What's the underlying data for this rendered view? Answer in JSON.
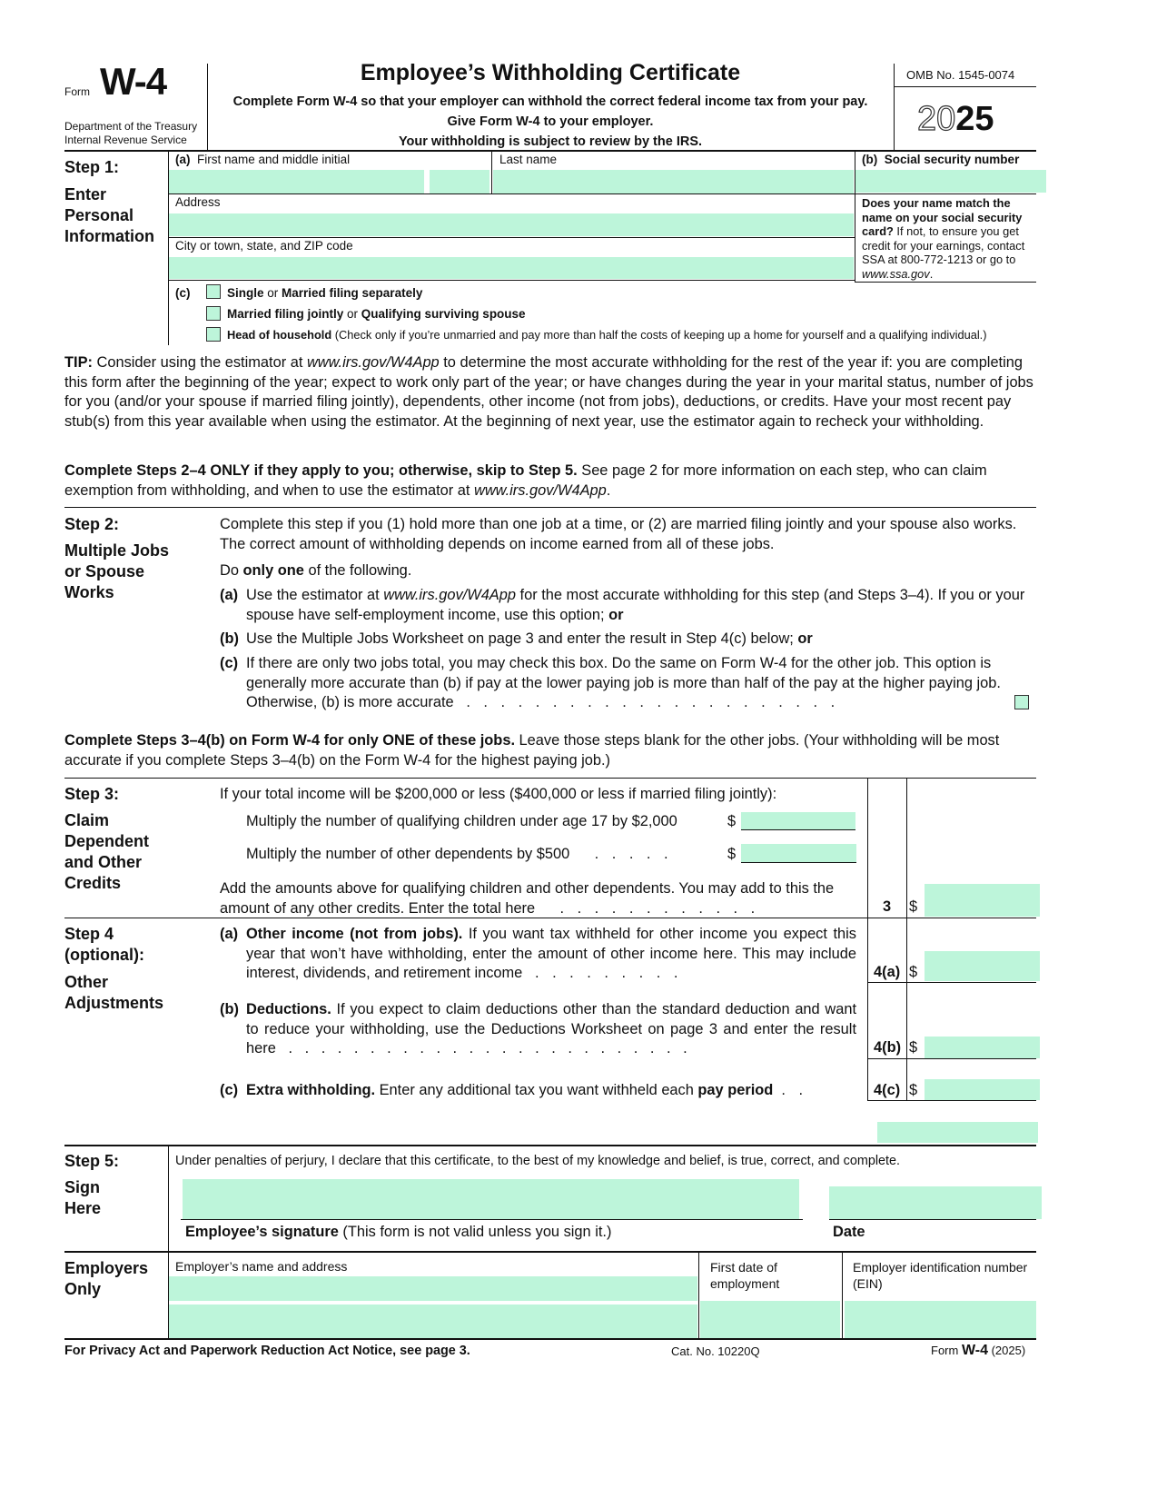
{
  "header": {
    "form_word": "Form",
    "form_name": "W-4",
    "dept1": "Department of the Treasury",
    "dept2": "Internal Revenue Service",
    "title": "Employee’s Withholding Certificate",
    "sub1": "Complete Form W-4 so that your employer can withhold the correct federal income tax from your pay.",
    "sub2": "Give Form W-4 to your employer.",
    "sub3": "Your withholding is subject to review by the IRS.",
    "omb": "OMB No. 1545-0074",
    "year_outline": "20",
    "year_bold": "25"
  },
  "step1": {
    "label": "Step 1:",
    "title1": "Enter",
    "title2": "Personal",
    "title3": "Information",
    "a": "(a)",
    "first_name": "First name and middle initial",
    "last_name": "Last name",
    "b": "(b)",
    "ssn": "Social security number",
    "address": "Address",
    "city": "City or town, state, and ZIP code",
    "note_bold": "Does your name match the name on your social security card?",
    "note": " If not, to ensure you get credit for your earnings, contact SSA at 800-772-1213 or go to ",
    "note_link": "www.ssa.gov",
    "note_end": ".",
    "c": "(c)",
    "opt1_b1": "Single",
    "opt1_or": " or ",
    "opt1_b2": "Married filing separately",
    "opt2_b1": "Married filing jointly",
    "opt2_or": " or ",
    "opt2_b2": "Qualifying surviving spouse",
    "opt3_b": "Head of household",
    "opt3": " (Check only if you’re unmarried and pay more than half the costs of keeping up a home for yourself and a qualifying individual.)"
  },
  "tip": {
    "label": "TIP:",
    "t1": " Consider using the estimator at ",
    "link": "www.irs.gov/W4App",
    "t2": " to determine the most accurate withholding for the rest of the year if: you are completing this form after the beginning of the year; expect to work only part of the year; or have changes during the year in your marital status, number of jobs for you (and/or your spouse if married filing jointly), dependents, other income (not from jobs), deductions, or credits. Have your most recent pay stub(s) from this year available when using the estimator. At the beginning of next year, use the estimator again to recheck your withholding."
  },
  "complete24": {
    "bold": "Complete Steps 2–4 ONLY if they apply to you; otherwise, skip to Step 5.",
    "t": " See page 2 for more information on each step, who can claim exemption from withholding, and when to use the estimator at ",
    "link": "www.irs.gov/W4App",
    "end": "."
  },
  "step2": {
    "label": "Step 2:",
    "t1": "Multiple Jobs",
    "t2": "or Spouse",
    "t3": "Works",
    "intro": "Complete this step if you (1) hold more than one job at a time, or (2) are married filing jointly and your spouse also works. The correct amount of withholding depends on income earned from all of these jobs.",
    "do1": "Do ",
    "do_b": "only one",
    "do2": " of the following.",
    "a": "(a)",
    "a1": "Use the estimator at ",
    "a_link": "www.irs.gov/W4App",
    "a2": " for the most accurate withholding for this step (and Steps 3–4). If you or your spouse have self-employment income, use this option; ",
    "a_or": "or",
    "b": "(b)",
    "b1": "Use the Multiple Jobs Worksheet on page 3 and enter the result in Step 4(c) below; ",
    "b_or": "or",
    "c": "(c)",
    "c1": "If there are only two jobs total, you may check this box. Do the same on Form W-4 for the other job. This option is generally more accurate than (b) if pay at the lower paying job is more than half of the pay at the higher paying job. Otherwise, (b) is more accurate",
    "dots": ". . . . . . . . . . . . . . . . . . . . . ."
  },
  "complete34": {
    "bold": "Complete Steps 3–4(b) on Form W-4 for only ONE of these jobs.",
    "t": " Leave those steps blank for the other jobs. (Your withholding will be most accurate if you complete Steps 3–4(b) on the Form W-4 for the highest paying job.)"
  },
  "step3": {
    "label": "Step 3:",
    "t1": "Claim",
    "t2": "Dependent",
    "t3": "and Other",
    "t4": "Credits",
    "intro": "If your total income will be $200,000 or less ($400,000 or less if married filing jointly):",
    "children": "Multiply the number of qualifying children under age 17 by $2,000",
    "other": "Multiply the number of other dependents by $500",
    "other_dots": ". . . . .",
    "dollar": "$",
    "add": "Add the amounts above for qualifying children and other dependents. You may add to this the amount of any other credits. Enter the total here",
    "add_dots": ". . . . . . . . . . . .",
    "line": "3"
  },
  "step4": {
    "label": "Step 4",
    "opt": "(optional):",
    "t1": "Other",
    "t2": "Adjustments",
    "a": "(a)",
    "a_b": "Other income (not from jobs).",
    "a_t": " If you want tax withheld for other income you expect this year that won’t have withholding, enter the amount of other income here. This may include interest, dividends, and retirement income",
    "a_dots": ". . . . . . . . .",
    "a_line": "4(a)",
    "b": "(b)",
    "b_b": "Deductions.",
    "b_t": " If you expect to claim deductions other than the standard deduction and want to reduce your withholding, use the Deductions Worksheet on page 3 and enter the result here",
    "b_dots": ". . . . . . . . . . . . . . . . . . . . . . . . .",
    "b_line": "4(b)",
    "c": "(c)",
    "c_b": "Extra withholding.",
    "c_t": " Enter any additional tax you want withheld each ",
    "c_b2": "pay period",
    "c_dots": ". .",
    "c_line": "4(c)",
    "dollar": "$"
  },
  "step5": {
    "label": "Step 5:",
    "t1": "Sign",
    "t2": "Here",
    "perjury": "Under penalties of perjury, I declare that this certificate, to the best of my knowledge and belief, is true, correct, and complete.",
    "sig_b": "Employee’s signature",
    "sig": " (This form is not valid unless you sign it.)",
    "date": "Date"
  },
  "employers": {
    "t1": "Employers",
    "t2": "Only",
    "name": "Employer’s name and address",
    "first_date": "First date of employment",
    "ein": "Employer identification number (EIN)"
  },
  "footer": {
    "privacy": "For Privacy Act and Paperwork Reduction Act Notice, see page 3.",
    "cat": "Cat. No. 10220Q",
    "form": "Form ",
    "form_b": "W-4",
    "year": " (2025)"
  }
}
